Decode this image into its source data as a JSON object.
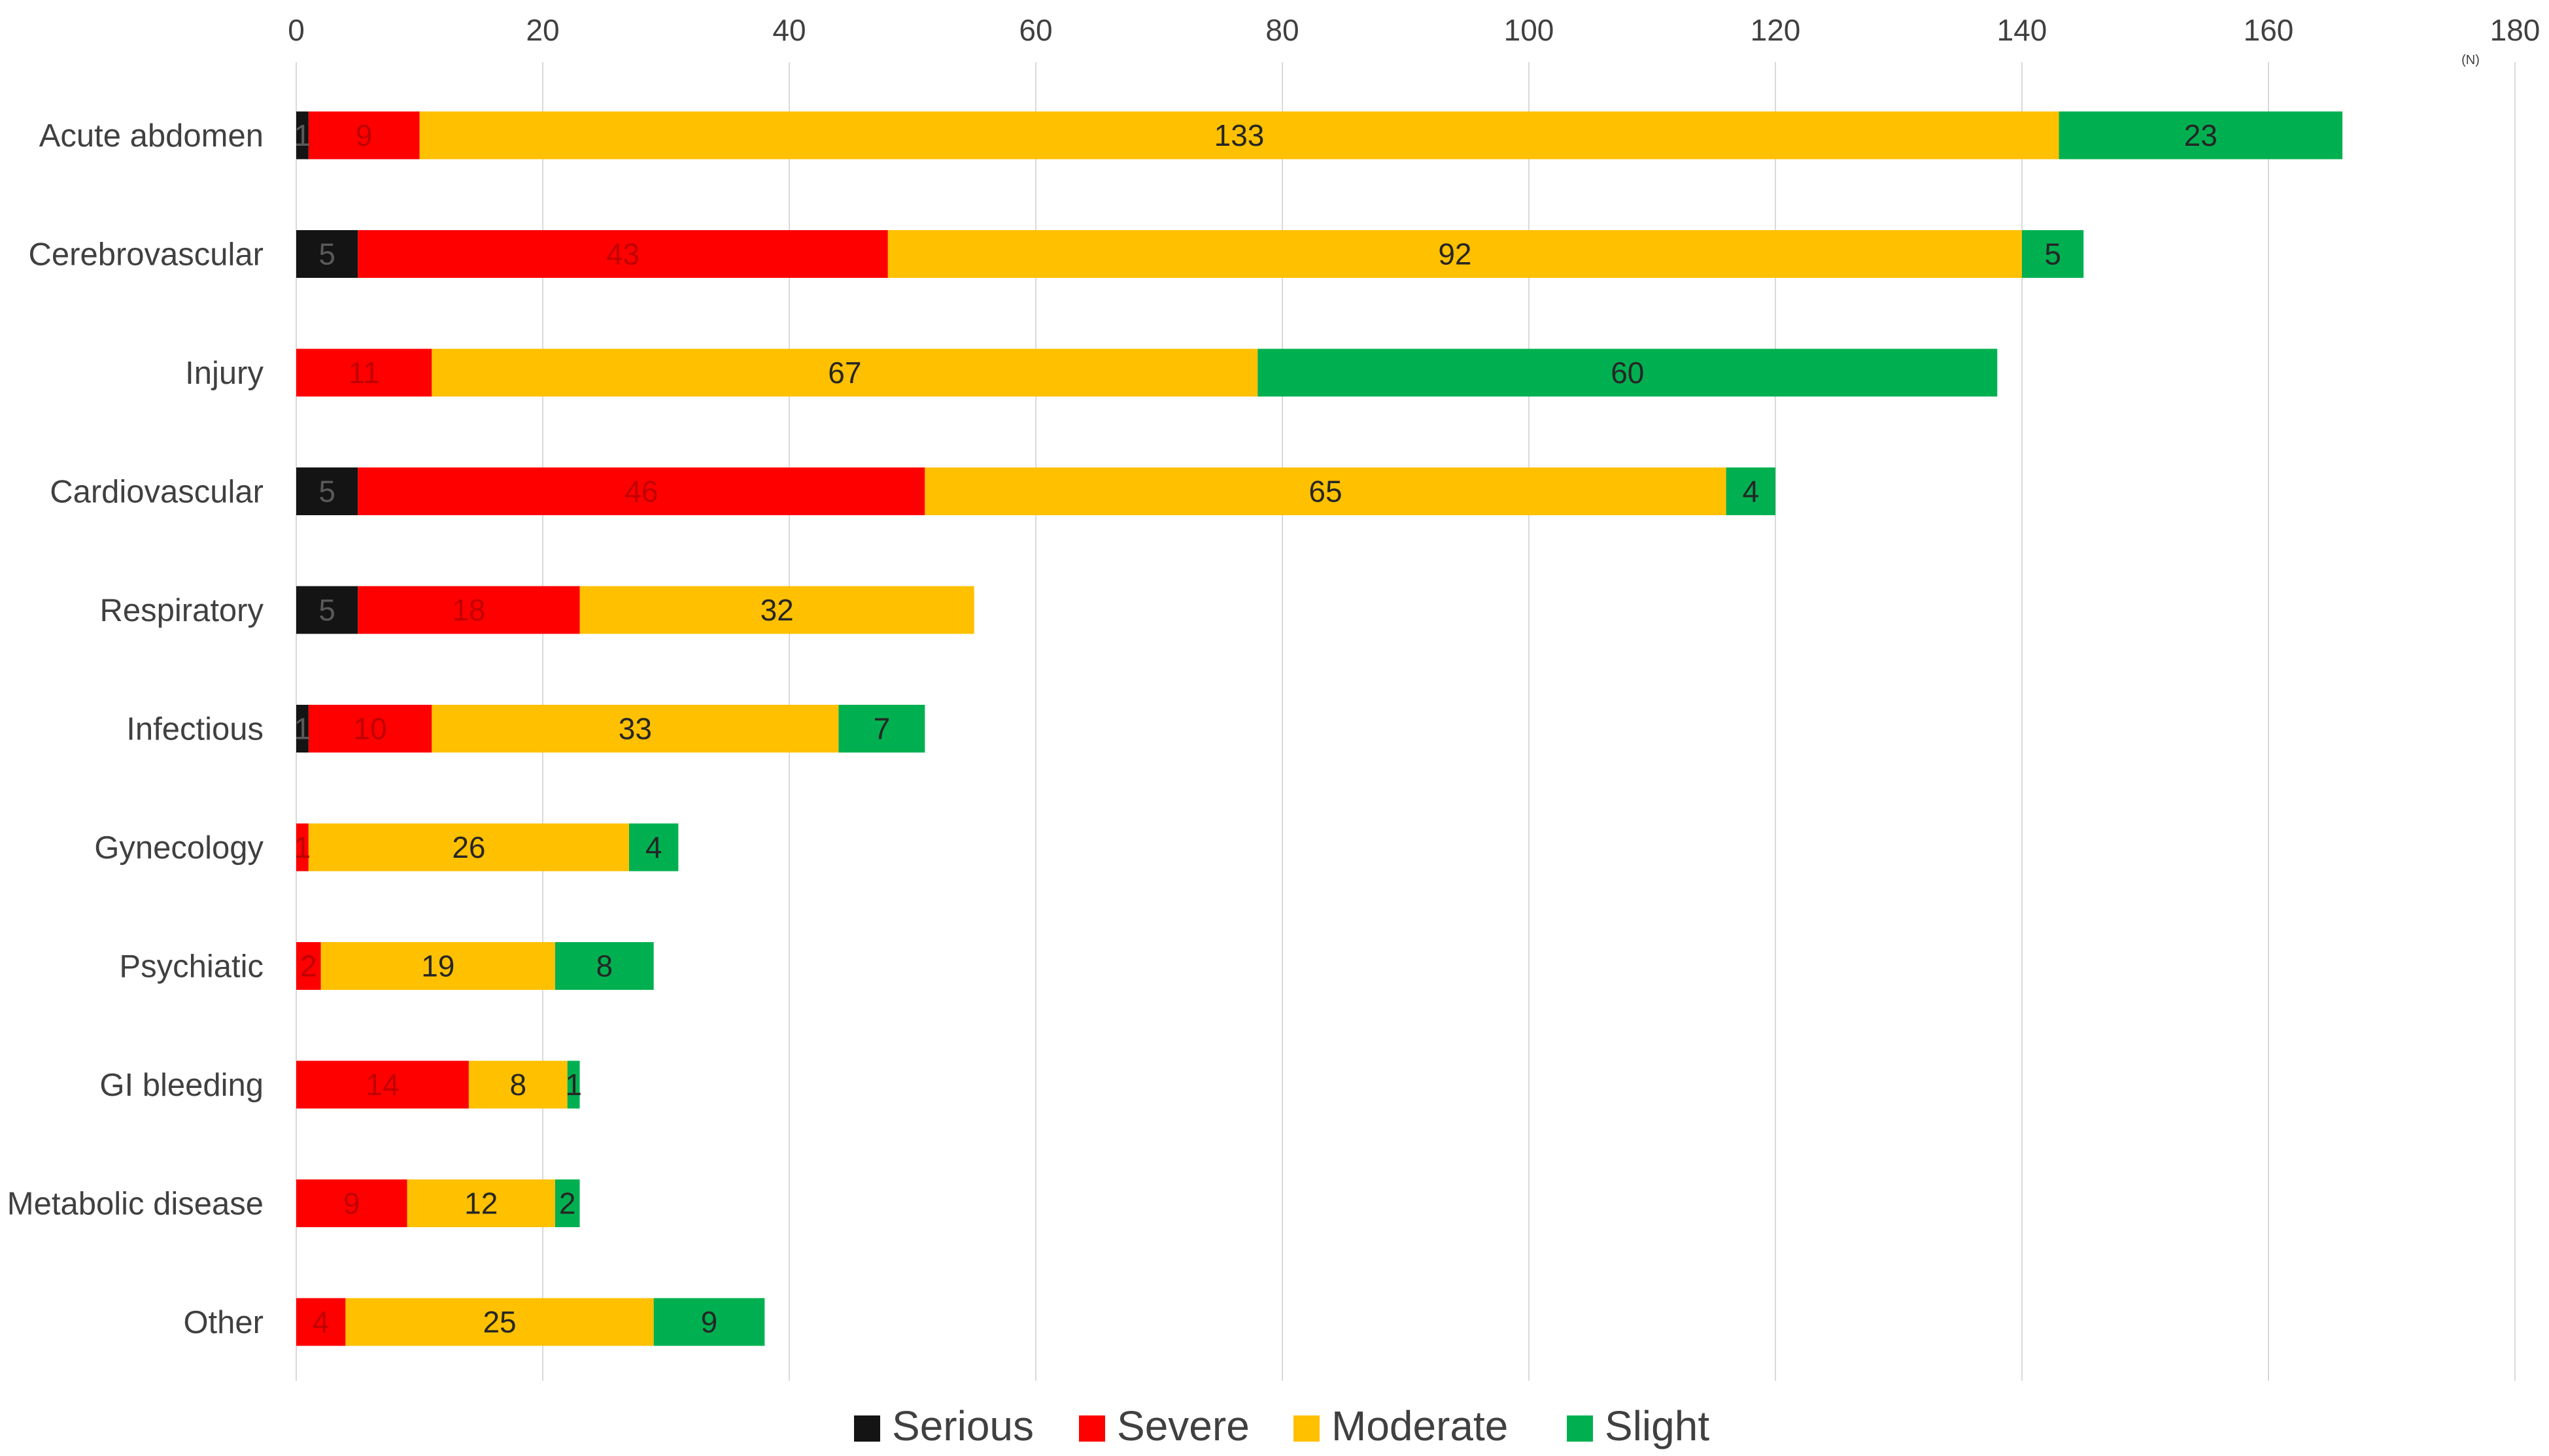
{
  "chart_data": {
    "type": "bar",
    "orientation": "horizontal",
    "stacked": true,
    "categories": [
      "Acute abdomen",
      "Cerebrovascular",
      "Injury",
      "Cardiovascular",
      "Respiratory",
      "Infectious",
      "Gynecology",
      "Psychiatic",
      "GI bleeding",
      "Metabolic disease",
      "Other"
    ],
    "series": [
      {
        "name": "Serious",
        "color": "#141414",
        "values": [
          1,
          5,
          0,
          5,
          5,
          1,
          0,
          0,
          0,
          0,
          0
        ]
      },
      {
        "name": "Severe",
        "color": "#ff0000",
        "values": [
          9,
          43,
          11,
          46,
          18,
          10,
          1,
          2,
          14,
          9,
          4
        ]
      },
      {
        "name": "Moderate",
        "color": "#ffc000",
        "values": [
          133,
          92,
          67,
          65,
          32,
          33,
          26,
          19,
          8,
          12,
          25
        ]
      },
      {
        "name": "Slight",
        "color": "#00b050",
        "values": [
          23,
          5,
          60,
          4,
          0,
          7,
          4,
          8,
          1,
          2,
          9
        ]
      }
    ],
    "xlim": [
      0,
      180
    ],
    "xticks": [
      0,
      20,
      40,
      60,
      80,
      100,
      120,
      140,
      160,
      180
    ],
    "x_axis_position": "top",
    "unit_label": "(N)",
    "grid": true,
    "legend_position": "bottom",
    "label_colors": {
      "Serious": "#595959",
      "Severe": "#c00000",
      "Moderate": "#262626",
      "Slight": "#262626"
    }
  }
}
